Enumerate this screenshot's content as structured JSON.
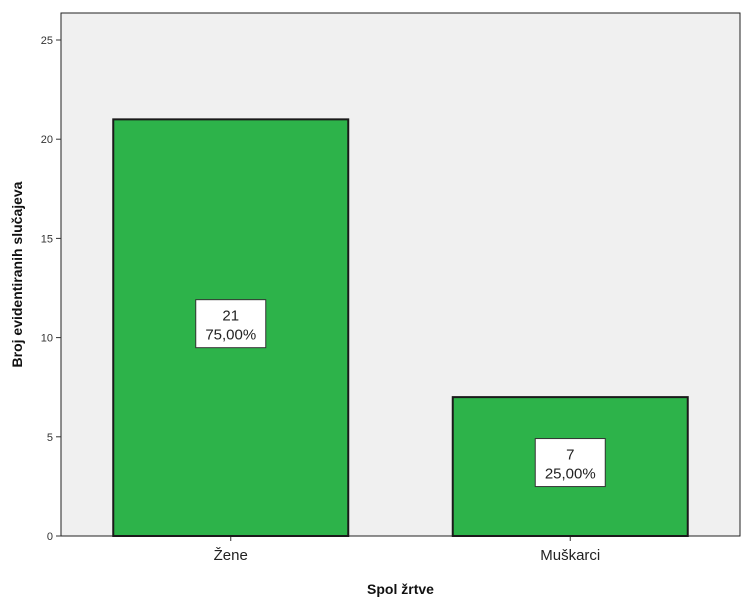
{
  "chart_data": {
    "type": "bar",
    "categories": [
      "Žene",
      "Muškarci"
    ],
    "values": [
      21,
      7
    ],
    "percent_labels": [
      "75,00%",
      "25,00%"
    ],
    "xlabel": "Spol žrtve",
    "ylabel": "Broj evidentiranih slučajeva",
    "ylim": [
      0,
      25
    ],
    "yticks": [
      0,
      5,
      10,
      15,
      20,
      25
    ],
    "grid": false,
    "legend": "none"
  },
  "colors": {
    "bar_fill": "#2db34a",
    "bar_stroke": "#1a1a1a",
    "plot_background": "#f0f0f0"
  }
}
